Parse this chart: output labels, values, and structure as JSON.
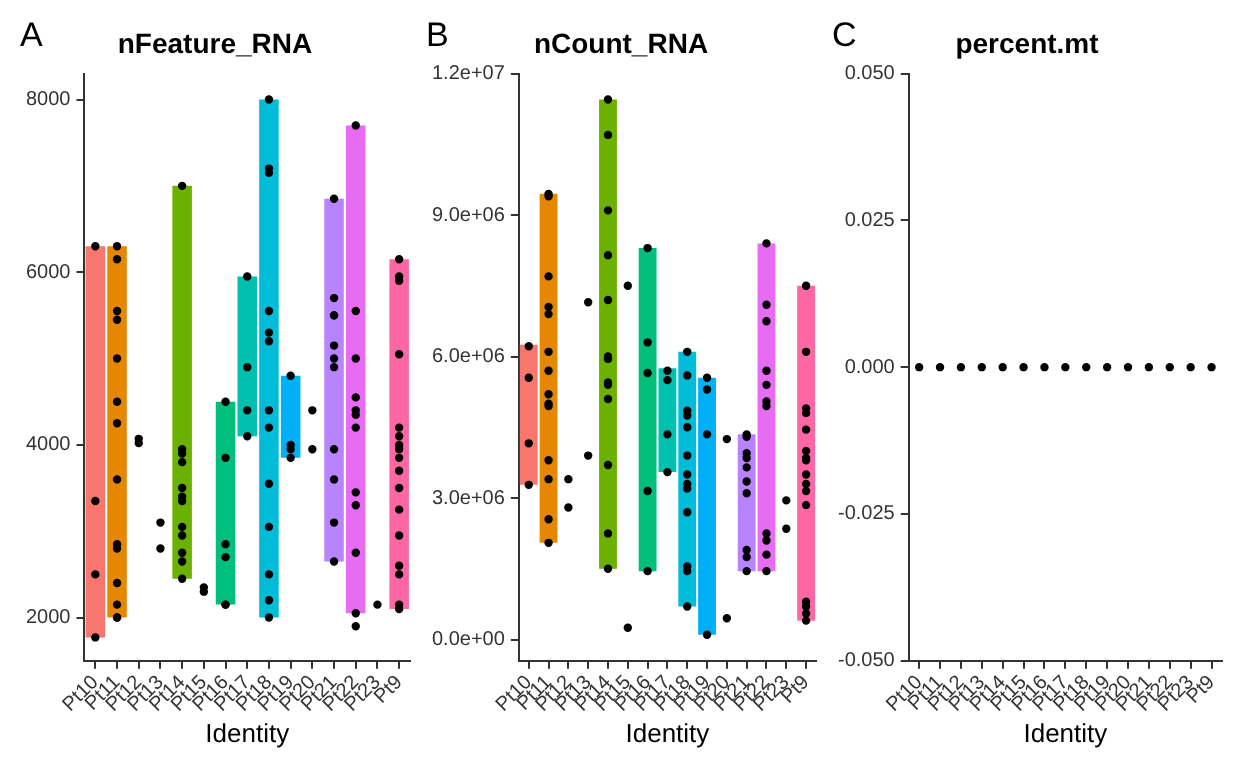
{
  "chart_data": [
    {
      "type": "bar",
      "title": "nFeature_RNA",
      "xlabel": "Identity",
      "annotations": [
        "A"
      ],
      "grid": false,
      "legend": false,
      "marker": "circle",
      "categories": [
        "Pt10",
        "Pt11",
        "Pt12",
        "Pt13",
        "Pt14",
        "Pt15",
        "Pt16",
        "Pt17",
        "Pt18",
        "Pt19",
        "Pt20",
        "Pt21",
        "Pt22",
        "Pt23",
        "Pt9"
      ],
      "ylim": [
        1500,
        8300
      ],
      "yticks": [
        2000,
        4000,
        6000,
        8000
      ],
      "series": [
        {
          "base": [
            1770,
            2000,
            null,
            null,
            2450,
            null,
            2150,
            4100,
            2000,
            3850,
            null,
            2650,
            2050,
            null,
            2100
          ],
          "colors": [
            "#f8766d",
            "#e58700",
            "#c99800",
            "#a3a500",
            "#6bb100",
            "#00ba38",
            "#00bf7d",
            "#00c0af",
            "#00bcd8",
            "#00b0f6",
            "#619cff",
            "#b983ff",
            "#e76bf3",
            "#fd61d1",
            "#ff67a4"
          ],
          "values": [
            4530,
            4300,
            null,
            null,
            4550,
            null,
            2350,
            1850,
            6000,
            950,
            null,
            4200,
            5650,
            null,
            4050
          ]
        },
        {
          "type": "scatter",
          "color": "#000000",
          "x": [
            "Pt10",
            "Pt10",
            "Pt10",
            "Pt10",
            "Pt11",
            "Pt11",
            "Pt11",
            "Pt11",
            "Pt11",
            "Pt11",
            "Pt11",
            "Pt11",
            "Pt11",
            "Pt11",
            "Pt11",
            "Pt11",
            "Pt11",
            "Pt11",
            "Pt12",
            "Pt12",
            "Pt13",
            "Pt13",
            "Pt14",
            "Pt14",
            "Pt14",
            "Pt14",
            "Pt14",
            "Pt14",
            "Pt14",
            "Pt14",
            "Pt14",
            "Pt14",
            "Pt14",
            "Pt14",
            "Pt15",
            "Pt15",
            "Pt16",
            "Pt16",
            "Pt16",
            "Pt16",
            "Pt16",
            "Pt16",
            "Pt17",
            "Pt17",
            "Pt17",
            "Pt17",
            "Pt18",
            "Pt18",
            "Pt18",
            "Pt18",
            "Pt18",
            "Pt18",
            "Pt18",
            "Pt18",
            "Pt18",
            "Pt18",
            "Pt18",
            "Pt18",
            "Pt18",
            "Pt19",
            "Pt19",
            "Pt19",
            "Pt19",
            "Pt20",
            "Pt20",
            "Pt21",
            "Pt21",
            "Pt21",
            "Pt21",
            "Pt21",
            "Pt21",
            "Pt21",
            "Pt21",
            "Pt21",
            "Pt21",
            "Pt21",
            "Pt22",
            "Pt22",
            "Pt22",
            "Pt22",
            "Pt22",
            "Pt22",
            "Pt22",
            "Pt22",
            "Pt22",
            "Pt22",
            "Pt22",
            "Pt22",
            "Pt23",
            "Pt9",
            "Pt9",
            "Pt9",
            "Pt9",
            "Pt9",
            "Pt9",
            "Pt9",
            "Pt9",
            "Pt9",
            "Pt9",
            "Pt9",
            "Pt9",
            "Pt9",
            "Pt9",
            "Pt9",
            "Pt9",
            "Pt9"
          ],
          "values": [
            6300,
            3350,
            2500,
            1770,
            6300,
            6150,
            5550,
            5450,
            5000,
            4500,
            4250,
            3600,
            2850,
            2800,
            2400,
            2150,
            2000,
            2000,
            4070,
            4020,
            3100,
            2800,
            7000,
            3950,
            3900,
            3800,
            3500,
            3400,
            3350,
            3050,
            2950,
            2750,
            2650,
            2450,
            2350,
            2300,
            4500,
            3850,
            2850,
            2700,
            2150,
            2150,
            5950,
            4900,
            4400,
            4100,
            8000,
            7200,
            7150,
            5550,
            5300,
            5200,
            4400,
            4200,
            3550,
            3050,
            2500,
            2200,
            2000,
            4800,
            4000,
            3950,
            3850,
            4400,
            3950,
            6850,
            5700,
            5500,
            5500,
            5150,
            5000,
            4900,
            3950,
            3600,
            3100,
            2650,
            7700,
            5550,
            5000,
            4550,
            4400,
            4350,
            4200,
            3450,
            3300,
            2750,
            2050,
            1900,
            2150,
            6150,
            5950,
            5900,
            5050,
            4200,
            4100,
            4000,
            3950,
            3850,
            3700,
            3500,
            3250,
            2950,
            2600,
            2500,
            2150,
            2100
          ]
        }
      ]
    },
    {
      "type": "bar",
      "title": "nCount_RNA",
      "xlabel": "Identity",
      "annotations": [
        "B"
      ],
      "grid": false,
      "legend": false,
      "marker": "circle",
      "categories": [
        "Pt10",
        "Pt11",
        "Pt12",
        "Pt13",
        "Pt14",
        "Pt15",
        "Pt16",
        "Pt17",
        "Pt18",
        "Pt19",
        "Pt20",
        "Pt21",
        "Pt22",
        "Pt23",
        "Pt9"
      ],
      "ylim": [
        -450000,
        12000000
      ],
      "yticks": [
        {
          "value": 0,
          "label": "0.0e+00"
        },
        {
          "value": 3000000,
          "label": "3.0e+06"
        },
        {
          "value": 6000000,
          "label": "6.0e+06"
        },
        {
          "value": 9000000,
          "label": "9.0e+06"
        },
        {
          "value": 12000000,
          "label": "1.2e+07"
        }
      ],
      "series": [
        {
          "base": [
            3280000,
            2050000,
            null,
            null,
            1500000,
            null,
            1450000,
            3550000,
            700000,
            100000,
            null,
            1450000,
            1450000,
            null,
            400000
          ],
          "colors": [
            "#f8766d",
            "#e58700",
            "#c99800",
            "#a3a500",
            "#6bb100",
            "#00ba38",
            "#00bf7d",
            "#00c0af",
            "#00bcd8",
            "#00b0f6",
            "#619cff",
            "#b983ff",
            "#e76bf3",
            "#fd61d1",
            "#ff67a4"
          ],
          "values": [
            2970000,
            7400000,
            null,
            null,
            9950000,
            null,
            6850000,
            2200000,
            5400000,
            5450000,
            null,
            2900000,
            6950000,
            null,
            7100000
          ]
        },
        {
          "type": "scatter",
          "color": "#000000",
          "x": [
            "Pt10",
            "Pt10",
            "Pt10",
            "Pt10",
            "Pt11",
            "Pt11",
            "Pt11",
            "Pt11",
            "Pt11",
            "Pt11",
            "Pt11",
            "Pt11",
            "Pt11",
            "Pt11",
            "Pt11",
            "Pt11",
            "Pt11",
            "Pt11",
            "Pt12",
            "Pt12",
            "Pt13",
            "Pt13",
            "Pt14",
            "Pt14",
            "Pt14",
            "Pt14",
            "Pt14",
            "Pt14",
            "Pt14",
            "Pt14",
            "Pt14",
            "Pt14",
            "Pt14",
            "Pt14",
            "Pt14",
            "Pt15",
            "Pt15",
            "Pt16",
            "Pt16",
            "Pt16",
            "Pt16",
            "Pt16",
            "Pt17",
            "Pt17",
            "Pt17",
            "Pt17",
            "Pt18",
            "Pt18",
            "Pt18",
            "Pt18",
            "Pt18",
            "Pt18",
            "Pt18",
            "Pt18",
            "Pt18",
            "Pt18",
            "Pt18",
            "Pt18",
            "Pt18",
            "Pt19",
            "Pt19",
            "Pt19",
            "Pt19",
            "Pt20",
            "Pt20",
            "Pt21",
            "Pt21",
            "Pt21",
            "Pt21",
            "Pt21",
            "Pt21",
            "Pt21",
            "Pt21",
            "Pt21",
            "Pt21",
            "Pt22",
            "Pt22",
            "Pt22",
            "Pt22",
            "Pt22",
            "Pt22",
            "Pt22",
            "Pt22",
            "Pt22",
            "Pt22",
            "Pt22",
            "Pt23",
            "Pt23",
            "Pt9",
            "Pt9",
            "Pt9",
            "Pt9",
            "Pt9",
            "Pt9",
            "Pt9",
            "Pt9",
            "Pt9",
            "Pt9",
            "Pt9",
            "Pt9",
            "Pt9",
            "Pt9",
            "Pt9",
            "Pt9"
          ],
          "values": [
            6220000,
            5550000,
            4160000,
            3280000,
            9450000,
            9400000,
            7700000,
            7050000,
            6900000,
            6100000,
            5700000,
            5200000,
            5000000,
            4950000,
            3800000,
            3400000,
            2550000,
            2050000,
            3400000,
            2800000,
            7150000,
            3900000,
            11450000,
            10700000,
            9100000,
            8150000,
            7200000,
            6000000,
            5950000,
            5450000,
            5400000,
            5100000,
            3700000,
            2250000,
            1500000,
            7500000,
            250000,
            8300000,
            6300000,
            5650000,
            3150000,
            1450000,
            5700000,
            5500000,
            4350000,
            3550000,
            6100000,
            5600000,
            4850000,
            4750000,
            4500000,
            3900000,
            3500000,
            3300000,
            3200000,
            2700000,
            1550000,
            1450000,
            700000,
            5550000,
            5300000,
            4350000,
            100000,
            4250000,
            450000,
            4350000,
            4300000,
            3950000,
            3850000,
            3650000,
            3350000,
            3100000,
            1900000,
            1750000,
            1450000,
            8400000,
            7100000,
            6750000,
            5700000,
            5400000,
            5050000,
            4950000,
            2250000,
            2100000,
            1800000,
            1450000,
            2950000,
            2350000,
            7500000,
            6100000,
            4900000,
            4800000,
            4450000,
            4000000,
            3850000,
            3800000,
            3500000,
            3300000,
            3150000,
            2850000,
            800000,
            700000,
            550000,
            400000
          ]
        }
      ]
    },
    {
      "type": "scatter",
      "title": "percent.mt",
      "xlabel": "Identity",
      "annotations": [
        "C"
      ],
      "grid": false,
      "legend": false,
      "marker": "circle",
      "categories": [
        "Pt10",
        "Pt11",
        "Pt12",
        "Pt13",
        "Pt14",
        "Pt15",
        "Pt16",
        "Pt17",
        "Pt18",
        "Pt19",
        "Pt20",
        "Pt21",
        "Pt22",
        "Pt23",
        "Pt9"
      ],
      "ylim": [
        -0.05,
        0.05
      ],
      "yticks": [
        {
          "value": -0.05,
          "label": "-0.050"
        },
        {
          "value": -0.025,
          "label": "-0.025"
        },
        {
          "value": 0,
          "label": "0.000"
        },
        {
          "value": 0.025,
          "label": "0.025"
        },
        {
          "value": 0.05,
          "label": "0.050"
        }
      ],
      "series": [
        {
          "color": "#000000",
          "x": [
            "Pt10",
            "Pt11",
            "Pt12",
            "Pt13",
            "Pt14",
            "Pt15",
            "Pt16",
            "Pt17",
            "Pt18",
            "Pt19",
            "Pt20",
            "Pt21",
            "Pt22",
            "Pt23",
            "Pt9"
          ],
          "values": [
            0,
            0,
            0,
            0,
            0,
            0,
            0,
            0,
            0,
            0,
            0,
            0,
            0,
            0,
            0
          ]
        }
      ]
    }
  ]
}
